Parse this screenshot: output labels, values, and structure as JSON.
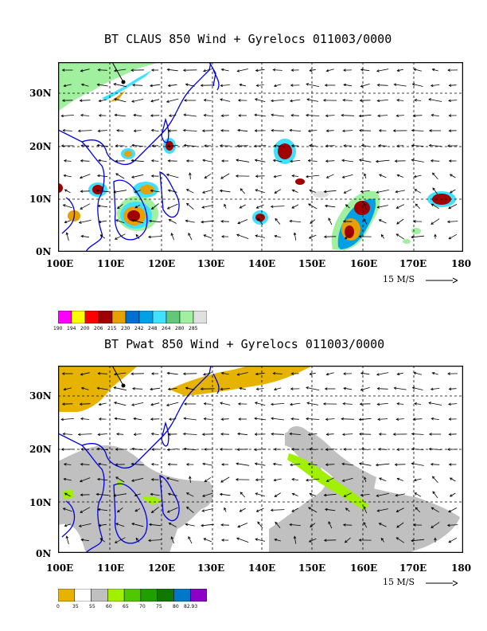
{
  "panels": [
    {
      "title": "BT CLAUS 850 Wind + Gyrelocs 011003/0000",
      "x_ticks": [
        "100E",
        "110E",
        "120E",
        "130E",
        "140E",
        "150E",
        "160E",
        "170E",
        "180"
      ],
      "y_ticks": [
        "30N",
        "20N",
        "10N",
        "0N"
      ],
      "scale_label": "15 M/S",
      "colorbar": {
        "colors": [
          "#ff00ff",
          "#ffff00",
          "#ff0000",
          "#a00000",
          "#e6a000",
          "#0070d0",
          "#00a0e6",
          "#40e0ff",
          "#60c878",
          "#a0f0a0",
          "#e0e0e0"
        ],
        "labels": [
          "190",
          "194",
          "200",
          "206",
          "215",
          "230",
          "242",
          "248",
          "264",
          "280",
          "285"
        ]
      }
    },
    {
      "title": "BT Pwat 850 Wind + Gyrelocs 011003/0000",
      "x_ticks": [
        "100E",
        "110E",
        "120E",
        "130E",
        "140E",
        "150E",
        "160E",
        "170E",
        "180"
      ],
      "y_ticks": [
        "30N",
        "20N",
        "10N",
        "0N"
      ],
      "scale_label": "15 M/S",
      "colorbar": {
        "colors": [
          "#e6b400",
          "#ffffff",
          "#c0c0c0",
          "#a0f000",
          "#50c800",
          "#20a000",
          "#107800",
          "#0078c8",
          "#8c00c8"
        ],
        "labels": [
          "0",
          "35",
          "55",
          "60",
          "65",
          "70",
          "75",
          "80",
          "82.93"
        ]
      }
    }
  ]
}
